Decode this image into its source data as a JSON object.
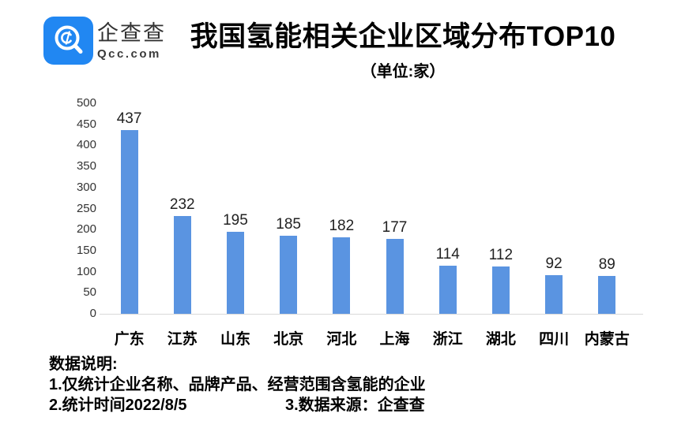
{
  "header": {
    "brand_cn": "企查查",
    "brand_en": "Qcc.com",
    "title": "我国氢能相关企业区域分布TOP10",
    "unit_note": "（单位:家）"
  },
  "chart_data": {
    "type": "bar",
    "title": "我国氢能相关企业区域分布TOP10",
    "unit_label": "（单位:家）",
    "categories": [
      "广东",
      "江苏",
      "山东",
      "北京",
      "河北",
      "上海",
      "浙江",
      "湖北",
      "四川",
      "内蒙古"
    ],
    "values": [
      437,
      232,
      195,
      185,
      182,
      177,
      114,
      112,
      92,
      89
    ],
    "xlabel": "",
    "ylabel": "",
    "ylim": [
      0,
      500
    ],
    "yticks": [
      500,
      450,
      400,
      350,
      300,
      250,
      200,
      150,
      100,
      50,
      0
    ],
    "grid": false,
    "legend": false,
    "bar_color": "#5A94E1",
    "axis_line_color": "#D9D9D9"
  },
  "footer": {
    "heading": "数据说明:",
    "notes": [
      "1.仅统计企业名称、品牌产品、经营范围含氢能的企业",
      "2.统计时间2022/8/5",
      "3.数据来源：企查查"
    ]
  },
  "colors": {
    "logo_blue": "#2187F2",
    "text_dark": "#333333"
  }
}
